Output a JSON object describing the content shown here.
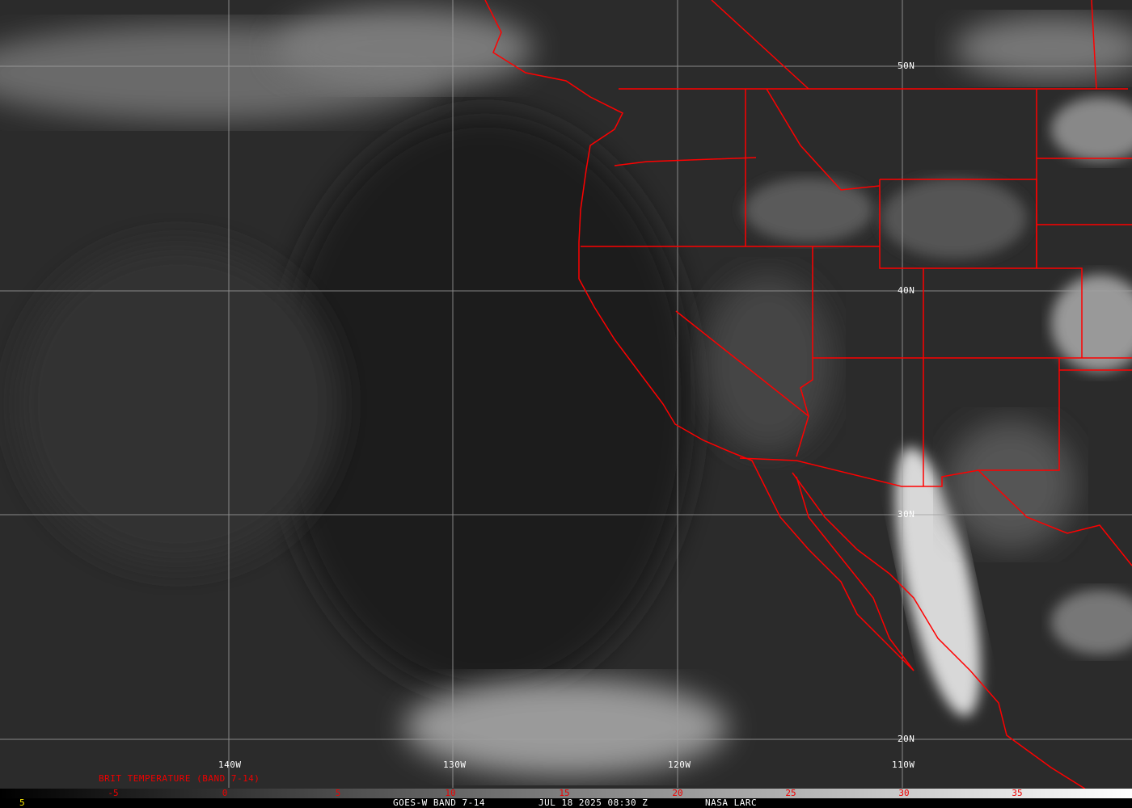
{
  "map": {
    "grid_lat_labels": [
      "50N",
      "40N",
      "30N",
      "20N"
    ],
    "grid_lon_labels": [
      "140W",
      "130W",
      "120W",
      "110W"
    ],
    "border_color": "#ff0000",
    "grid_color": "#a0a0a0"
  },
  "colorbar": {
    "title": "BRIT TEMPERATURE (BAND 7-14)",
    "ticks": [
      "-5",
      "0",
      "5",
      "10",
      "15",
      "20",
      "25",
      "30",
      "35"
    ],
    "tick_color": "#ff0000",
    "gradient": [
      "#000000",
      "#ffffff"
    ]
  },
  "footer": {
    "frame": "5",
    "satellite": "GOES-W BAND 7-14",
    "datetime": "JUL 18 2025 08:30 Z",
    "source": "NASA LARC"
  }
}
